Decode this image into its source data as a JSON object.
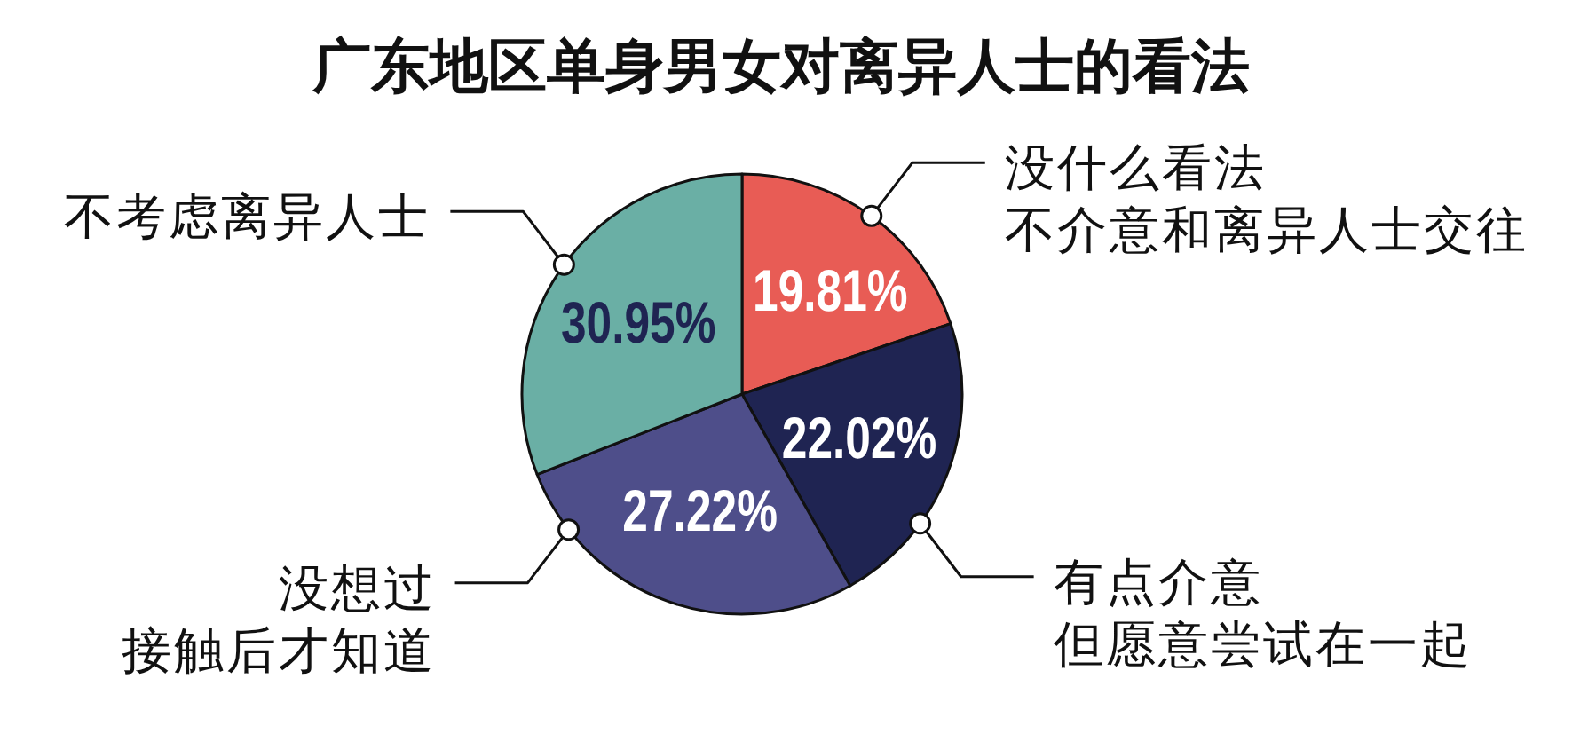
{
  "chart_data": {
    "type": "pie",
    "title": "广东地区单身男女对离异人士的看法",
    "categories": [
      "没什么看法不介意和离异人士交往",
      "有点介意但愿意尝试在一起",
      "没想过接触后才知道",
      "不考虑离异人士"
    ],
    "values": [
      19.81,
      22.02,
      27.22,
      30.95
    ],
    "colors": [
      "#e85c55",
      "#1f2452",
      "#4e4e8a",
      "#6aafa5"
    ],
    "value_labels": [
      "19.81%",
      "22.02%",
      "27.22%",
      "30.95%"
    ]
  }
}
